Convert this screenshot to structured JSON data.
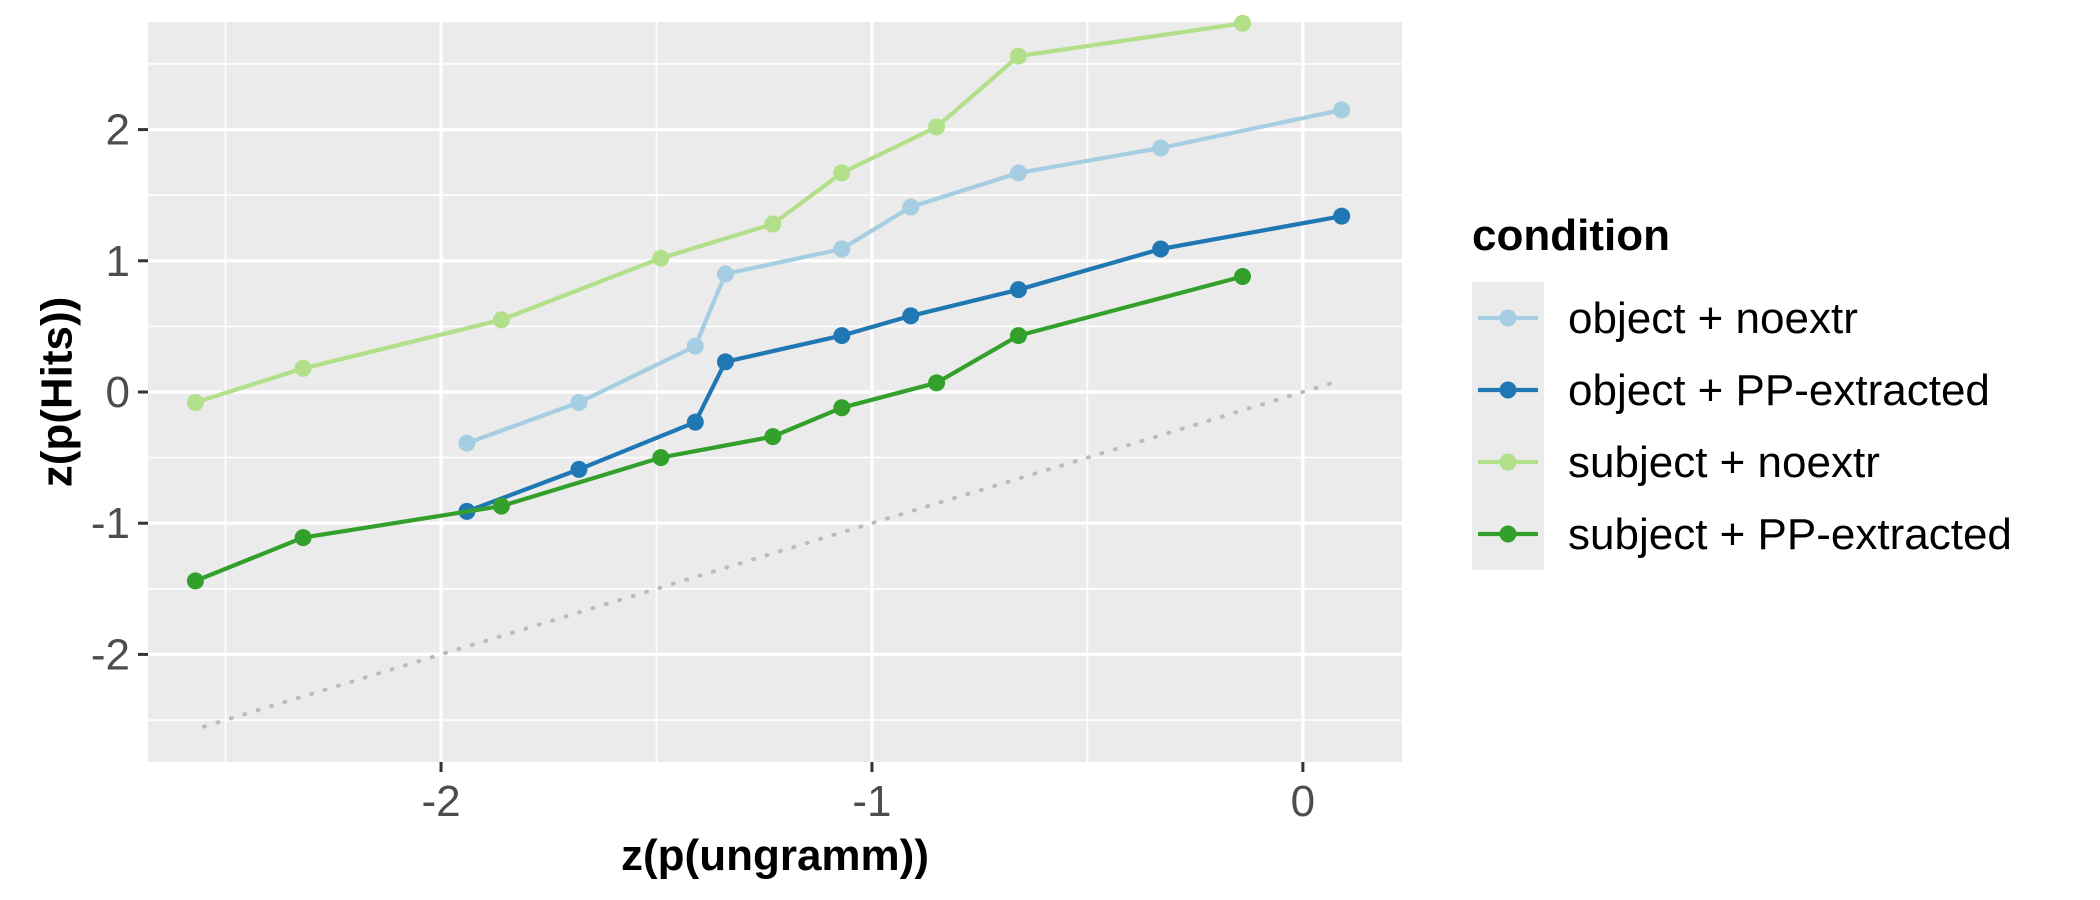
{
  "chart_data": {
    "type": "line",
    "title": "",
    "xlabel": "z(p(ungramm))",
    "ylabel": "z(p(Hits))",
    "xlim": [
      -2.68,
      0.23
    ],
    "ylim": [
      -2.82,
      2.82
    ],
    "x_ticks": [
      -2,
      -1,
      0
    ],
    "x_tick_labels": [
      "-2",
      "-1",
      "0"
    ],
    "y_ticks": [
      -2,
      -1,
      0,
      1,
      2
    ],
    "y_tick_labels": [
      "-2",
      "-1",
      "0",
      "1",
      "2"
    ],
    "grid": true,
    "background": "#EBEBEB",
    "legend": {
      "title": "condition",
      "position": "right"
    },
    "reference_line": {
      "style": "dotted",
      "color": "#BBBBBB",
      "x": [
        -2.55,
        0.08
      ],
      "y": [
        -2.55,
        0.08
      ]
    },
    "series": [
      {
        "name": "object + noextr",
        "color": "#A6CEE3",
        "x": [
          -1.94,
          -1.68,
          -1.41,
          -1.34,
          -1.07,
          -0.91,
          -0.66,
          -0.33,
          0.09
        ],
        "y": [
          -0.39,
          -0.08,
          0.35,
          0.9,
          1.09,
          1.41,
          1.67,
          1.86,
          2.15
        ]
      },
      {
        "name": "object + PP-extracted",
        "color": "#1F78B4",
        "x": [
          -1.94,
          -1.68,
          -1.41,
          -1.34,
          -1.07,
          -0.91,
          -0.66,
          -0.33,
          0.09
        ],
        "y": [
          -0.91,
          -0.59,
          -0.23,
          0.23,
          0.43,
          0.58,
          0.78,
          1.09,
          1.34
        ]
      },
      {
        "name": "subject + noextr",
        "color": "#B2DF8A",
        "x": [
          -2.57,
          -2.32,
          -1.86,
          -1.49,
          -1.23,
          -1.07,
          -0.85,
          -0.66,
          -0.14
        ],
        "y": [
          -0.08,
          0.18,
          0.55,
          1.02,
          1.28,
          1.67,
          2.02,
          2.56,
          2.81
        ]
      },
      {
        "name": "subject + PP-extracted",
        "color": "#33A02C",
        "x": [
          -2.57,
          -2.32,
          -1.86,
          -1.49,
          -1.23,
          -1.07,
          -0.85,
          -0.66,
          -0.14
        ],
        "y": [
          -1.44,
          -1.11,
          -0.87,
          -0.5,
          -0.34,
          -0.12,
          0.07,
          0.43,
          0.88
        ]
      }
    ]
  }
}
